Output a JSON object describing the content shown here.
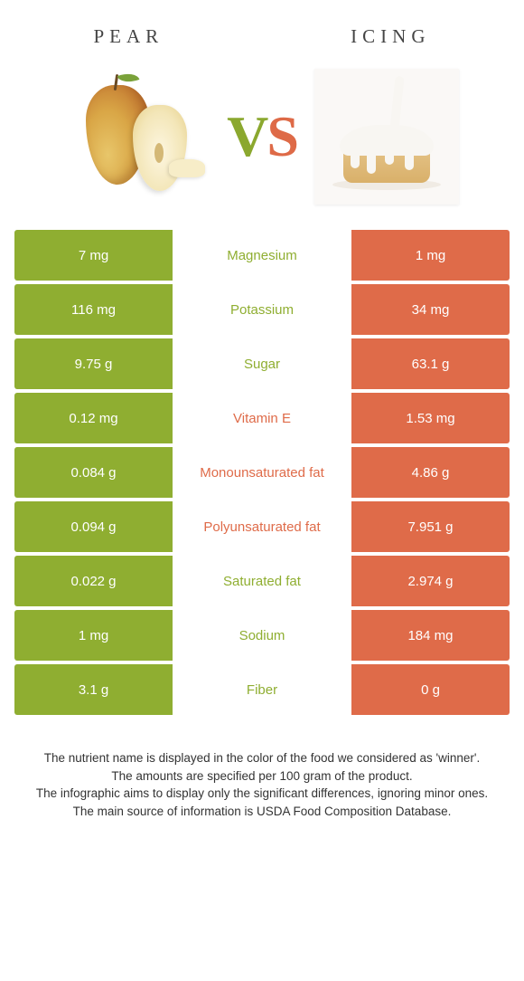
{
  "colors": {
    "green": "#8fae31",
    "orange": "#df6b49",
    "background": "#ffffff",
    "text": "#333333"
  },
  "header": {
    "left_title": "Pear",
    "right_title": "Icing",
    "vs_v": "V",
    "vs_s": "S"
  },
  "table": {
    "rows": [
      {
        "left": "7 mg",
        "label": "Magnesium",
        "right": "1 mg",
        "winner": "left"
      },
      {
        "left": "116 mg",
        "label": "Potassium",
        "right": "34 mg",
        "winner": "left"
      },
      {
        "left": "9.75 g",
        "label": "Sugar",
        "right": "63.1 g",
        "winner": "left"
      },
      {
        "left": "0.12 mg",
        "label": "Vitamin E",
        "right": "1.53 mg",
        "winner": "right"
      },
      {
        "left": "0.084 g",
        "label": "Monounsaturated fat",
        "right": "4.86 g",
        "winner": "right"
      },
      {
        "left": "0.094 g",
        "label": "Polyunsaturated fat",
        "right": "7.951 g",
        "winner": "right"
      },
      {
        "left": "0.022 g",
        "label": "Saturated fat",
        "right": "2.974 g",
        "winner": "left"
      },
      {
        "left": "1 mg",
        "label": "Sodium",
        "right": "184 mg",
        "winner": "left"
      },
      {
        "left": "3.1 g",
        "label": "Fiber",
        "right": "0 g",
        "winner": "left"
      }
    ]
  },
  "footer": {
    "line1": "The nutrient name is displayed in the color of the food we considered as 'winner'.",
    "line2": "The amounts are specified per 100 gram of the product.",
    "line3": "The infographic aims to display only the significant differences, ignoring minor ones.",
    "line4": "The main source of information is USDA Food Composition Database."
  }
}
